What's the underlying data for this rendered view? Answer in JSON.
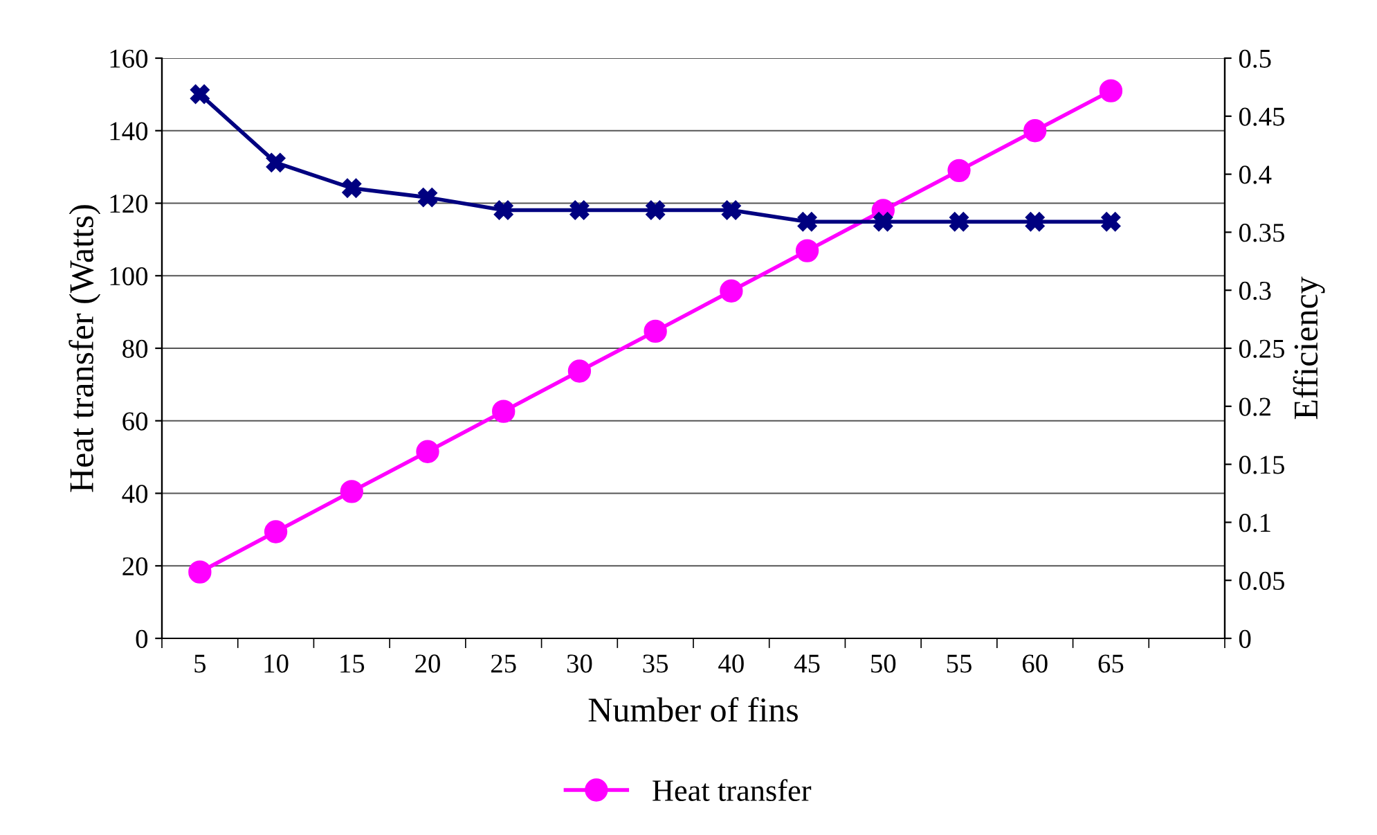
{
  "chart_data": {
    "type": "line",
    "xlabel": "Number of fins",
    "ylabel": "Heat transfer (Watts)",
    "y2label": "Efficiency",
    "categories": [
      "5",
      "10",
      "15",
      "20",
      "25",
      "30",
      "35",
      "40",
      "45",
      "50",
      "55",
      "60",
      "65",
      null
    ],
    "series": [
      {
        "name": "Heat transfer",
        "color": "#ff00ff",
        "marker": "circle",
        "values": [
          18.3,
          29.4,
          40.5,
          51.5,
          62.6,
          73.7,
          84.7,
          95.8,
          106.9,
          118,
          129,
          140,
          151,
          null
        ]
      },
      {
        "color": "#000080",
        "marker": "cross",
        "axis": "y2",
        "values": [
          0.469,
          0.41,
          0.388,
          0.38,
          0.369,
          0.369,
          0.369,
          0.369,
          0.359,
          0.359,
          0.359,
          0.359,
          0.359,
          null
        ]
      }
    ],
    "ylim": [
      0,
      160
    ],
    "yticks": [
      0,
      20,
      40,
      60,
      80,
      100,
      120,
      140,
      160
    ],
    "y2lim": [
      0,
      0.5
    ],
    "y2ticks": [
      0,
      0.05,
      0.1,
      0.15,
      0.2,
      0.25,
      0.3,
      0.35,
      0.4,
      0.45,
      0.5
    ],
    "grid": "y",
    "legend": "bottom",
    "line_style": "solid"
  }
}
